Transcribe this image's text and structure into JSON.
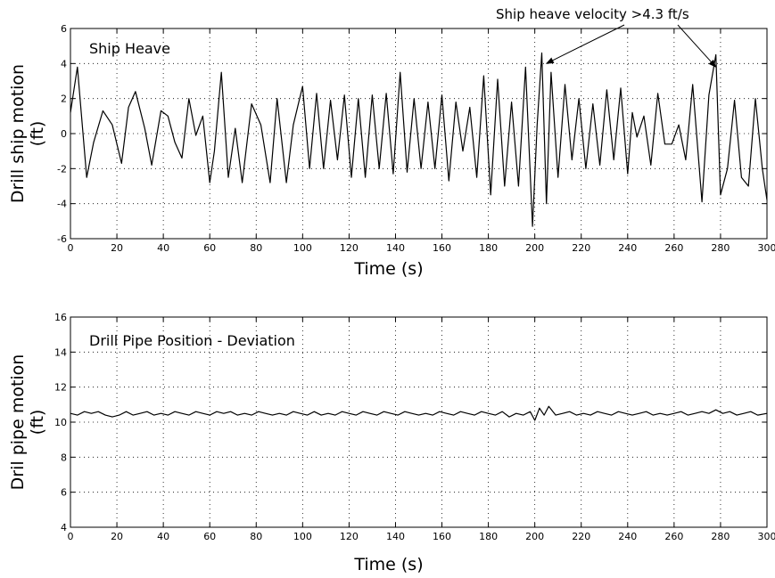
{
  "chart_data": [
    {
      "type": "line",
      "title": "Ship Heave",
      "xlabel": "Time (s)",
      "ylabel_line1": "Drill ship motion",
      "ylabel_line2": "(ft)",
      "xlim": [
        0,
        300
      ],
      "ylim": [
        -6,
        6
      ],
      "xticks": [
        0,
        20,
        40,
        60,
        80,
        100,
        120,
        140,
        160,
        180,
        200,
        220,
        240,
        260,
        280,
        300
      ],
      "yticks": [
        -6,
        -4,
        -2,
        0,
        2,
        4,
        6
      ],
      "grid": true,
      "annotation": {
        "text": "Ship heave velocity >4.3 ft/s",
        "targets": [
          [
            205,
            4.0
          ],
          [
            278,
            3.8
          ]
        ]
      },
      "series": [
        {
          "color": "#000000",
          "x": [
            0,
            3,
            7,
            10,
            14,
            18,
            22,
            25,
            28,
            32,
            35,
            39,
            42,
            45,
            48,
            51,
            54,
            57,
            60,
            62,
            65,
            68,
            71,
            74,
            78,
            82,
            86,
            89,
            93,
            96,
            100,
            103,
            106,
            109,
            112,
            115,
            118,
            121,
            124,
            127,
            130,
            133,
            136,
            139,
            142,
            145,
            148,
            151,
            154,
            157,
            160,
            163,
            166,
            169,
            172,
            175,
            178,
            181,
            184,
            187,
            190,
            193,
            196,
            199,
            201,
            203,
            205,
            207,
            210,
            213,
            216,
            219,
            222,
            225,
            228,
            231,
            234,
            237,
            240,
            242,
            244,
            247,
            250,
            253,
            256,
            259,
            262,
            265,
            268,
            272,
            275,
            278,
            280,
            283,
            286,
            289,
            292,
            295,
            298,
            300
          ],
          "y": [
            1.2,
            3.8,
            -2.5,
            -0.5,
            1.3,
            0.5,
            -1.7,
            1.5,
            2.4,
            0.3,
            -1.8,
            1.3,
            1.0,
            -0.5,
            -1.4,
            2.0,
            -0.1,
            1.0,
            -2.8,
            -1.0,
            3.5,
            -2.5,
            0.3,
            -2.8,
            1.7,
            0.5,
            -2.8,
            2.0,
            -2.8,
            0.5,
            2.7,
            -2.0,
            2.3,
            -2.0,
            1.9,
            -1.5,
            2.2,
            -2.5,
            2.0,
            -2.5,
            2.2,
            -2.0,
            2.3,
            -2.3,
            3.5,
            -2.2,
            2.0,
            -2.0,
            1.8,
            -2.0,
            2.2,
            -2.7,
            1.8,
            -1.0,
            1.5,
            -2.5,
            3.3,
            -3.5,
            3.1,
            -3.0,
            1.8,
            -3.0,
            3.8,
            -5.3,
            0.5,
            4.6,
            -4.0,
            3.5,
            -2.5,
            2.8,
            -1.5,
            2.0,
            -2.0,
            1.7,
            -1.8,
            2.5,
            -1.5,
            2.6,
            -2.3,
            1.2,
            -0.2,
            1.0,
            -1.8,
            2.3,
            -0.6,
            -0.6,
            0.5,
            -1.5,
            2.8,
            -3.9,
            2.2,
            4.5,
            -3.5,
            -2.0,
            1.9,
            -2.5,
            -3.0,
            2.0,
            -2.0,
            -3.8
          ]
        }
      ]
    },
    {
      "type": "line",
      "title": "Drill Pipe Position - Deviation",
      "xlabel": "Time (s)",
      "ylabel_line1": "Dril pipe motion",
      "ylabel_line2": "(ft)",
      "xlim": [
        0,
        300
      ],
      "ylim": [
        4,
        16
      ],
      "xticks": [
        0,
        20,
        40,
        60,
        80,
        100,
        120,
        140,
        160,
        180,
        200,
        220,
        240,
        260,
        280,
        300
      ],
      "yticks": [
        4,
        6,
        8,
        10,
        12,
        14,
        16
      ],
      "grid": true,
      "series": [
        {
          "color": "#000000",
          "x": [
            0,
            3,
            6,
            9,
            12,
            15,
            18,
            21,
            24,
            27,
            30,
            33,
            36,
            39,
            42,
            45,
            48,
            51,
            54,
            57,
            60,
            63,
            66,
            69,
            72,
            75,
            78,
            81,
            84,
            87,
            90,
            93,
            96,
            99,
            102,
            105,
            108,
            111,
            114,
            117,
            120,
            123,
            126,
            129,
            132,
            135,
            138,
            141,
            144,
            147,
            150,
            153,
            156,
            159,
            162,
            165,
            168,
            171,
            174,
            177,
            180,
            183,
            186,
            189,
            192,
            195,
            198,
            200,
            202,
            204,
            206,
            209,
            212,
            215,
            218,
            221,
            224,
            227,
            230,
            233,
            236,
            239,
            242,
            245,
            248,
            251,
            254,
            257,
            260,
            263,
            266,
            269,
            272,
            275,
            278,
            281,
            284,
            287,
            290,
            293,
            296,
            300
          ],
          "y": [
            10.5,
            10.4,
            10.6,
            10.5,
            10.6,
            10.4,
            10.3,
            10.4,
            10.6,
            10.4,
            10.5,
            10.6,
            10.4,
            10.5,
            10.4,
            10.6,
            10.5,
            10.4,
            10.6,
            10.5,
            10.4,
            10.6,
            10.5,
            10.6,
            10.4,
            10.5,
            10.4,
            10.6,
            10.5,
            10.4,
            10.5,
            10.4,
            10.6,
            10.5,
            10.4,
            10.6,
            10.4,
            10.5,
            10.4,
            10.6,
            10.5,
            10.4,
            10.6,
            10.5,
            10.4,
            10.6,
            10.5,
            10.4,
            10.6,
            10.5,
            10.4,
            10.5,
            10.4,
            10.6,
            10.5,
            10.4,
            10.6,
            10.5,
            10.4,
            10.6,
            10.5,
            10.4,
            10.6,
            10.3,
            10.5,
            10.4,
            10.6,
            10.1,
            10.8,
            10.4,
            10.9,
            10.4,
            10.5,
            10.6,
            10.4,
            10.5,
            10.4,
            10.6,
            10.5,
            10.4,
            10.6,
            10.5,
            10.4,
            10.5,
            10.6,
            10.4,
            10.5,
            10.4,
            10.5,
            10.6,
            10.4,
            10.5,
            10.6,
            10.5,
            10.7,
            10.5,
            10.6,
            10.4,
            10.5,
            10.6,
            10.4,
            10.5
          ]
        }
      ]
    }
  ]
}
